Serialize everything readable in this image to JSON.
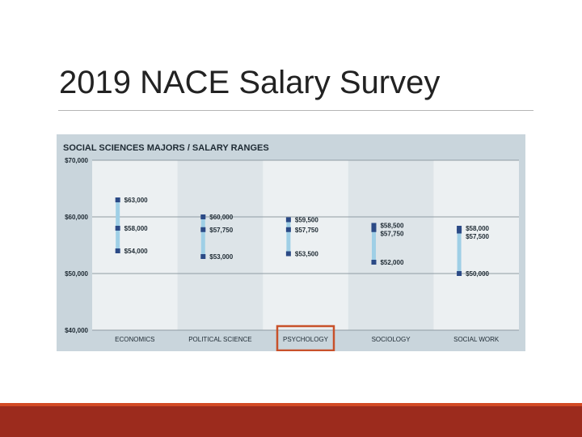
{
  "slide": {
    "title": "2019 NACE Salary Survey"
  },
  "theme": {
    "panel_bg": "#c9d5dc",
    "plot_bg": "#ecf0f2",
    "band_alt": "#dde4e8",
    "grid": "#8f9ba3",
    "bar": "#9fcfe6",
    "marker": "#2b4a86",
    "highlight": "#c8512a",
    "footer_dark": "#9c2b1d",
    "footer_light": "#d24a24"
  },
  "chart_data": {
    "type": "range",
    "title": "SOCIAL SCIENCES MAJORS / SALARY RANGES",
    "categories": [
      "ECONOMICS",
      "POLITICAL SCIENCE",
      "PSYCHOLOGY",
      "SOCIOLOGY",
      "SOCIAL WORK"
    ],
    "highlighted_category": "PSYCHOLOGY",
    "ylim": [
      40000,
      70000
    ],
    "y_ticks": [
      40000,
      50000,
      60000,
      70000
    ],
    "y_tick_labels": [
      "$40,000",
      "$50,000",
      "$60,000",
      "$70,000"
    ],
    "grid": true,
    "points": [
      [
        {
          "value": 63000,
          "label": "$63,000"
        },
        {
          "value": 58000,
          "label": "$58,000"
        },
        {
          "value": 54000,
          "label": "$54,000"
        }
      ],
      [
        {
          "value": 60000,
          "label": "$60,000"
        },
        {
          "value": 57750,
          "label": "$57,750"
        },
        {
          "value": 53000,
          "label": "$53,000"
        }
      ],
      [
        {
          "value": 59500,
          "label": "$59,500"
        },
        {
          "value": 57750,
          "label": "$57,750"
        },
        {
          "value": 53500,
          "label": "$53,500"
        }
      ],
      [
        {
          "value": 58500,
          "label": "$58,500"
        },
        {
          "value": 57750,
          "label": "$57,750"
        },
        {
          "value": 52000,
          "label": "$52,000"
        }
      ],
      [
        {
          "value": 58000,
          "label": "$58,000"
        },
        {
          "value": 57500,
          "label": "$57,500"
        },
        {
          "value": 50000,
          "label": "$50,000"
        }
      ]
    ]
  }
}
